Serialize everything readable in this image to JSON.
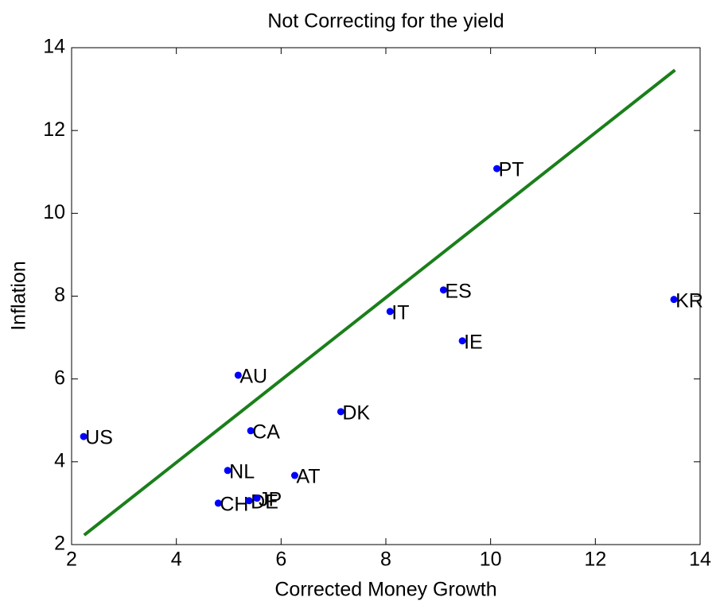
{
  "chart_data": {
    "type": "scatter",
    "title": "Not Correcting for the yield",
    "x_label": "Corrected Money Growth",
    "y_label": "Inflation",
    "xlim": [
      2,
      14
    ],
    "ylim": [
      2,
      14
    ],
    "xticks": [
      2,
      4,
      6,
      8,
      10,
      12,
      14
    ],
    "yticks": [
      2,
      4,
      6,
      8,
      10,
      12,
      14
    ],
    "point_color": "#0000ff",
    "labels": [
      "US",
      "AU",
      "CA",
      "NL",
      "CH",
      "DE",
      "JP",
      "AT",
      "DK",
      "IT",
      "ES",
      "IE",
      "PT",
      "KR"
    ],
    "x": [
      2.23,
      5.18,
      5.42,
      4.98,
      4.8,
      5.39,
      5.54,
      6.26,
      7.14,
      8.08,
      9.1,
      9.46,
      10.12,
      13.5
    ],
    "values": [
      4.61,
      6.09,
      4.75,
      3.79,
      3.0,
      3.06,
      3.12,
      3.67,
      5.21,
      7.63,
      8.15,
      6.92,
      11.08,
      7.92
    ],
    "fit": {
      "color": "#1a7f1a",
      "x": [
        2.24,
        13.52
      ],
      "values": [
        2.23,
        13.46
      ]
    }
  }
}
